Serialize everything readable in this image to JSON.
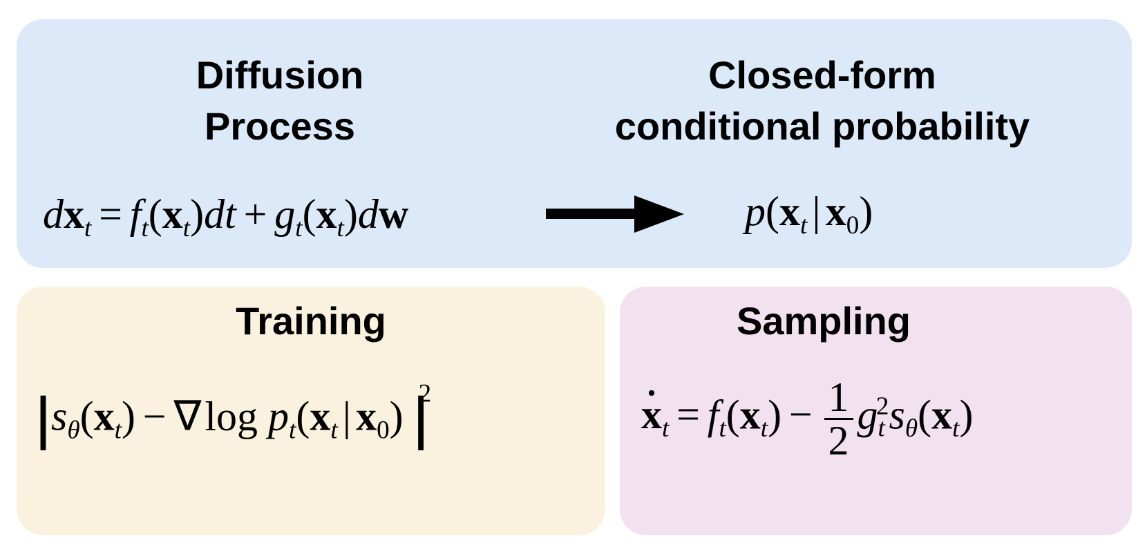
{
  "panels": {
    "diffusion": {
      "title_line1": "Diffusion",
      "title_line2": "Process",
      "color": "#dce9f8"
    },
    "closed_form": {
      "title_line1": "Closed-form",
      "title_line2": "conditional probability"
    },
    "training": {
      "title": "Training",
      "color": "#faf2df"
    },
    "sampling": {
      "title": "Sampling",
      "color": "#f2e1ee"
    }
  },
  "formulas": {
    "sde": "dx_t = f_t(x_t)dt + g_t(x_t)dw",
    "conditional": "p(x_t | x_0)",
    "training_loss": "||s_θ(x_t) − ∇log p_t(x_t | x_0)||^2",
    "sampling_ode": "ẋ_t = f_t(x_t) − 1/2 g_t^2 s_θ(x_t)"
  },
  "symbols": {
    "d": "d",
    "x": "x",
    "t": "t",
    "f": "f",
    "g": "g",
    "w": "w",
    "p": "p",
    "s": "s",
    "theta": "θ",
    "zero": "0",
    "two": "2",
    "one": "1",
    "eq": "=",
    "plus": "+",
    "minus": "−",
    "bar": "|",
    "lpar": "(",
    "rpar": ")",
    "nabla": "∇",
    "log": "log",
    "norm": "||",
    "dt": "dt"
  },
  "icons": {
    "arrow": "right-arrow-icon"
  }
}
